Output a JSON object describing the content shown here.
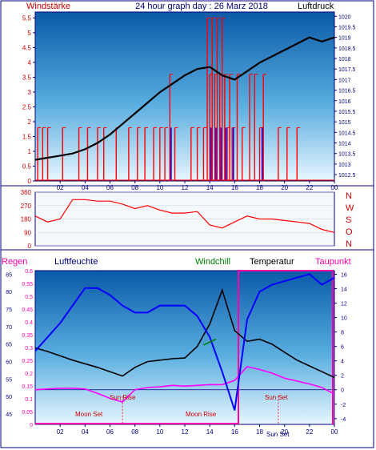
{
  "header": {
    "left_label": "Windstärke",
    "title": "24 hour graph day : 26 Marz 2018",
    "right_label": "Luftdruck"
  },
  "bottom_header": {
    "regen": "Regen",
    "luftfeuchte": "Luftfeuchte",
    "windchill": "Windchill",
    "temperatur": "Temperatur",
    "taupunkt": "Taupunkt"
  },
  "direction_labels": [
    "N",
    "W",
    "S",
    "O",
    "N"
  ],
  "annotations": {
    "sun_rise": "Sun Rise",
    "sun_set": "Sun Set",
    "moon_set": "Moon Set",
    "moon_rise": "Moon Rise",
    "sun_set_bottom": "Sun Set"
  },
  "colors": {
    "wind": "#ff0000",
    "gust_blue": "#0000ff",
    "pressure": "#000000",
    "humidity": "#0000ff",
    "temperature": "#000000",
    "dewpoint": "#ff00ff",
    "rain": "#ff00aa",
    "windchill": "#008000",
    "label_red": "#cc0000",
    "label_navy": "#000080"
  },
  "chart_data": [
    {
      "type": "bar",
      "name": "wind-pressure",
      "xticks": [
        "02",
        "04",
        "06",
        "08",
        "10",
        "12",
        "14",
        "16",
        "18",
        "20",
        "22",
        "00"
      ],
      "y_left_ticks": [
        "0",
        "0.5",
        "1",
        "1.5",
        "2",
        "2.5",
        "3",
        "3.5",
        "4",
        "4.5",
        "5",
        "5.5"
      ],
      "y_left_range": [
        0,
        5.7
      ],
      "y_right_ticks": [
        "1012.5",
        "1013",
        "1013.5",
        "1014",
        "1014.5",
        "1015",
        "1015.5",
        "1016",
        "1016.5",
        "1017",
        "1017.5",
        "1018",
        "1018.5",
        "1019",
        "1019.5",
        "1020"
      ],
      "y_right_range": [
        1012.2,
        1020.2
      ],
      "pressure": {
        "x": [
          0,
          1,
          2,
          3,
          4,
          5,
          6,
          7,
          8,
          9,
          10,
          11,
          12,
          13,
          14,
          15,
          16,
          17,
          18,
          19,
          20,
          21,
          22,
          23,
          24
        ],
        "values": [
          1013.2,
          1013.3,
          1013.4,
          1013.5,
          1013.7,
          1014.0,
          1014.4,
          1014.9,
          1015.4,
          1015.9,
          1016.4,
          1016.8,
          1017.2,
          1017.5,
          1017.6,
          1017.2,
          1017.0,
          1017.4,
          1017.8,
          1018.1,
          1018.4,
          1018.7,
          1019.0,
          1018.8,
          1019.0
        ]
      },
      "wind_bars": [
        {
          "x": 0.2,
          "value": 1.8
        },
        {
          "x": 0.6,
          "value": 1.8
        },
        {
          "x": 1.0,
          "value": 1.8
        },
        {
          "x": 2.2,
          "value": 1.8
        },
        {
          "x": 3.5,
          "value": 1.8
        },
        {
          "x": 4.2,
          "value": 1.8
        },
        {
          "x": 5.0,
          "value": 1.8
        },
        {
          "x": 5.5,
          "value": 1.8
        },
        {
          "x": 6.5,
          "value": 1.8
        },
        {
          "x": 7.5,
          "value": 1.8
        },
        {
          "x": 8.2,
          "value": 1.8
        },
        {
          "x": 8.8,
          "value": 1.8
        },
        {
          "x": 9.5,
          "value": 1.8
        },
        {
          "x": 10.0,
          "value": 1.8
        },
        {
          "x": 10.4,
          "value": 1.8
        },
        {
          "x": 10.8,
          "value": 3.6
        },
        {
          "x": 11.2,
          "value": 1.8
        },
        {
          "x": 12.5,
          "value": 1.8
        },
        {
          "x": 13.0,
          "value": 1.8
        },
        {
          "x": 13.5,
          "value": 1.8
        },
        {
          "x": 13.8,
          "value": 5.5
        },
        {
          "x": 14.0,
          "value": 3.6
        },
        {
          "x": 14.2,
          "value": 5.5
        },
        {
          "x": 14.4,
          "value": 3.6
        },
        {
          "x": 14.6,
          "value": 5.5
        },
        {
          "x": 14.8,
          "value": 3.6
        },
        {
          "x": 15.0,
          "value": 5.5
        },
        {
          "x": 15.2,
          "value": 3.6
        },
        {
          "x": 15.4,
          "value": 1.8
        },
        {
          "x": 15.6,
          "value": 3.6
        },
        {
          "x": 15.8,
          "value": 1.8
        },
        {
          "x": 16.2,
          "value": 3.6
        },
        {
          "x": 16.6,
          "value": 1.8
        },
        {
          "x": 17.2,
          "value": 3.6
        },
        {
          "x": 17.6,
          "value": 3.6
        },
        {
          "x": 18.0,
          "value": 1.8
        },
        {
          "x": 18.3,
          "value": 3.6
        },
        {
          "x": 19.5,
          "value": 1.8
        },
        {
          "x": 20.2,
          "value": 1.8
        },
        {
          "x": 21.0,
          "value": 1.8
        }
      ],
      "gust_bars": [
        {
          "x": 10.9,
          "value": 1.8
        },
        {
          "x": 14.1,
          "value": 1.8
        },
        {
          "x": 14.5,
          "value": 1.8
        },
        {
          "x": 14.9,
          "value": 1.8
        },
        {
          "x": 15.3,
          "value": 1.8
        },
        {
          "x": 15.9,
          "value": 1.8
        },
        {
          "x": 18.2,
          "value": 1.8
        }
      ]
    },
    {
      "type": "line",
      "name": "wind-direction",
      "y_ticks": [
        "0",
        "90",
        "180",
        "270",
        "360"
      ],
      "y_range": [
        0,
        360
      ],
      "x": [
        0,
        1,
        2,
        3,
        4,
        5,
        6,
        7,
        8,
        9,
        10,
        11,
        12,
        13,
        14,
        15,
        16,
        17,
        18,
        19,
        20,
        21,
        22,
        23,
        24
      ],
      "values": [
        200,
        160,
        180,
        310,
        310,
        300,
        300,
        280,
        250,
        270,
        240,
        220,
        220,
        230,
        140,
        120,
        160,
        200,
        180,
        180,
        170,
        160,
        150,
        110,
        90
      ]
    },
    {
      "type": "line",
      "name": "temp-humidity",
      "y_rain_ticks": [
        "0",
        "0.05",
        "0.1",
        "0.15",
        "0.2",
        "0.25",
        "0.3",
        "0.35",
        "0.4",
        "0.45",
        "0.5",
        "0.55",
        "0.6"
      ],
      "y_rain_range": [
        0,
        0.6
      ],
      "y_humidity_ticks": [
        "45",
        "50",
        "55",
        "60",
        "65",
        "70",
        "75",
        "80",
        "85"
      ],
      "y_humidity_range": [
        42,
        86
      ],
      "y_temp_ticks": [
        "-4",
        "-2",
        "0",
        "2",
        "4",
        "6",
        "8",
        "10",
        "12",
        "14",
        "16"
      ],
      "y_temp_range": [
        -4.8,
        16.5
      ],
      "humidity": {
        "x": [
          0,
          1,
          2,
          3,
          4,
          5,
          6,
          7,
          8,
          9,
          10,
          11,
          12,
          13,
          14,
          15,
          16,
          17,
          18,
          19,
          20,
          21,
          22,
          23,
          24
        ],
        "values": [
          63,
          67,
          71,
          76,
          81,
          81,
          79,
          76,
          74,
          74,
          76,
          76,
          76,
          73,
          67,
          57,
          46,
          72,
          80,
          82,
          83,
          84,
          85,
          82,
          84
        ]
      },
      "temperature": {
        "x": [
          0,
          1,
          2,
          3,
          4,
          5,
          6,
          7,
          8,
          9,
          10,
          11,
          12,
          13,
          14,
          15,
          16,
          17,
          18,
          19,
          20,
          21,
          22,
          23,
          24
        ],
        "values": [
          5.8,
          5.3,
          4.7,
          4.1,
          3.6,
          3.1,
          2.5,
          1.9,
          3.1,
          3.9,
          4.1,
          4.3,
          4.4,
          6.0,
          9.1,
          13.8,
          8.2,
          6.7,
          7.0,
          6.3,
          5.2,
          4.1,
          3.3,
          2.5,
          1.7
        ]
      },
      "dewpoint": {
        "x": [
          0,
          1,
          2,
          3,
          4,
          5,
          6,
          7,
          8,
          9,
          10,
          11,
          12,
          13,
          14,
          15,
          16,
          17,
          18,
          19,
          20,
          21,
          22,
          23,
          24
        ],
        "values": [
          0.0,
          0.1,
          0.2,
          0.2,
          0.1,
          -0.5,
          -1.2,
          -1.7,
          0.0,
          0.3,
          0.4,
          0.6,
          0.5,
          0.6,
          0.7,
          0.7,
          1.3,
          3.2,
          2.8,
          2.3,
          1.6,
          1.2,
          0.8,
          0.3,
          -0.6
        ]
      },
      "windchill": {
        "x": [
          13.5,
          14.5
        ],
        "values": [
          6.2,
          7.0
        ]
      },
      "rain_cumulative": 0.6
    }
  ]
}
